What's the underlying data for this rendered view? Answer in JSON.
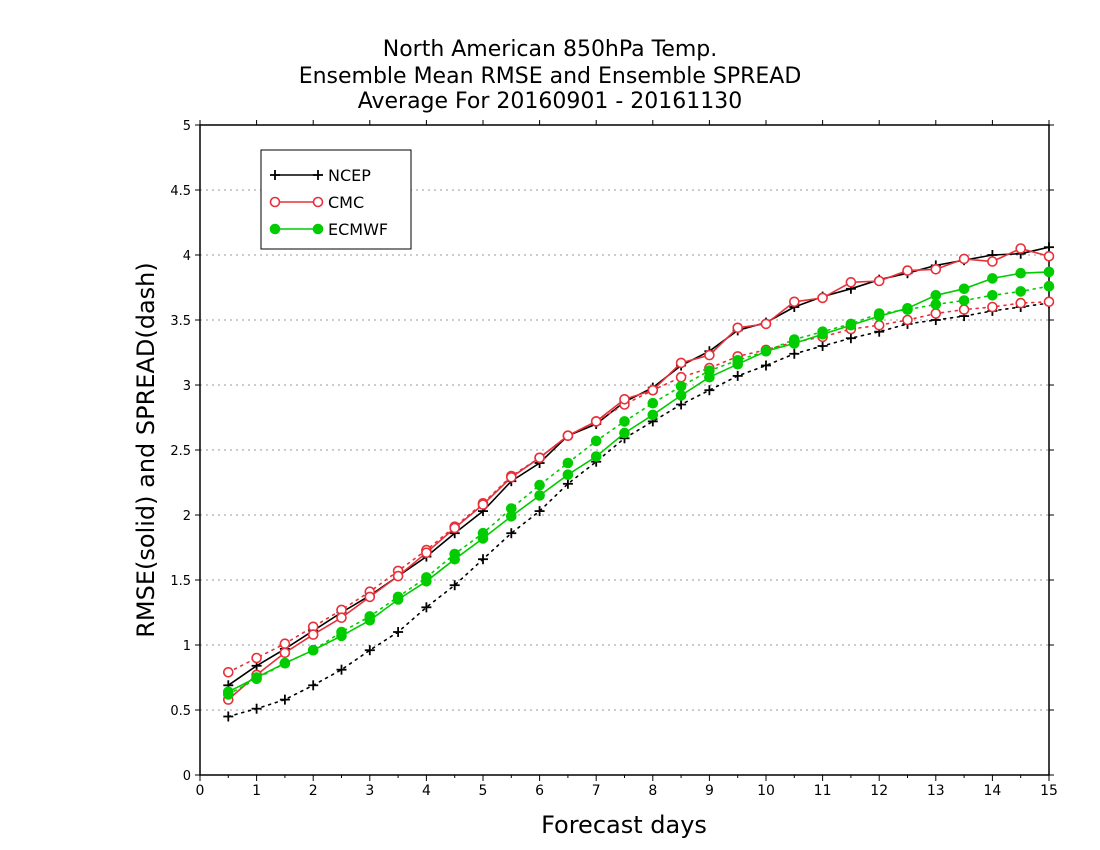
{
  "chart_data": {
    "type": "line",
    "title": [
      "North American 850hPa Temp.",
      "Ensemble Mean RMSE and Ensemble SPREAD",
      "Average For 20160901 - 20161130"
    ],
    "xlabel": "Forecast days",
    "ylabel": "RMSE(solid) and SPREAD(dash)",
    "xlim": [
      0,
      15
    ],
    "ylim": [
      0,
      5
    ],
    "xticks": [
      "0",
      "1",
      "2",
      "3",
      "4",
      "5",
      "6",
      "7",
      "8",
      "9",
      "10",
      "11",
      "12",
      "13",
      "14",
      "15"
    ],
    "yticks": [
      "0",
      "0.5",
      "1",
      "1.5",
      "2",
      "2.5",
      "3",
      "3.5",
      "4",
      "4.5",
      "5"
    ],
    "grid": true,
    "legend_position": "top-left",
    "x": [
      0.5,
      1,
      1.5,
      2,
      2.5,
      3,
      3.5,
      4,
      4.5,
      5,
      5.5,
      6,
      6.5,
      7,
      7.5,
      8,
      8.5,
      9,
      9.5,
      10,
      10.5,
      11,
      11.5,
      12,
      12.5,
      13,
      13.5,
      14,
      14.5,
      15
    ],
    "series": [
      {
        "name": "NCEP",
        "color": "#000000",
        "marker": "plus",
        "rmse": [
          0.69,
          0.84,
          0.97,
          1.11,
          1.25,
          1.38,
          1.53,
          1.68,
          1.86,
          2.03,
          2.26,
          2.4,
          2.61,
          2.7,
          2.87,
          2.98,
          3.15,
          3.26,
          3.42,
          3.48,
          3.6,
          3.68,
          3.74,
          3.81,
          3.86,
          3.92,
          3.96,
          4.0,
          4.01,
          4.06
        ],
        "spread": [
          0.45,
          0.51,
          0.58,
          0.69,
          0.81,
          0.96,
          1.1,
          1.29,
          1.46,
          1.66,
          1.86,
          2.03,
          2.24,
          2.41,
          2.59,
          2.72,
          2.85,
          2.96,
          3.07,
          3.15,
          3.24,
          3.3,
          3.36,
          3.41,
          3.47,
          3.5,
          3.53,
          3.57,
          3.6,
          3.63
        ]
      },
      {
        "name": "CMC",
        "color": "#e8303a",
        "marker": "circle",
        "rmse": [
          0.58,
          0.77,
          0.94,
          1.08,
          1.21,
          1.37,
          1.53,
          1.71,
          1.9,
          2.08,
          2.29,
          2.44,
          2.61,
          2.72,
          2.89,
          2.96,
          3.17,
          3.23,
          3.44,
          3.47,
          3.64,
          3.67,
          3.79,
          3.8,
          3.88,
          3.89,
          3.97,
          3.95,
          4.05,
          3.99
        ],
        "spread": [
          0.79,
          0.9,
          1.01,
          1.14,
          1.27,
          1.41,
          1.57,
          1.73,
          1.91,
          2.09,
          2.3,
          2.44,
          2.61,
          2.72,
          2.85,
          2.96,
          3.06,
          3.13,
          3.22,
          3.27,
          3.33,
          3.37,
          3.43,
          3.46,
          3.5,
          3.55,
          3.58,
          3.6,
          3.63,
          3.64
        ]
      },
      {
        "name": "ECMWF",
        "color": "#00cc00",
        "marker": "dot",
        "rmse": [
          0.64,
          0.75,
          0.86,
          0.96,
          1.07,
          1.19,
          1.35,
          1.49,
          1.66,
          1.82,
          1.99,
          2.15,
          2.31,
          2.45,
          2.63,
          2.77,
          2.92,
          3.06,
          3.16,
          3.26,
          3.32,
          3.39,
          3.46,
          3.53,
          3.59,
          3.69,
          3.74,
          3.82,
          3.86,
          3.87
        ],
        "spread": [
          0.62,
          0.74,
          0.86,
          0.96,
          1.1,
          1.22,
          1.37,
          1.52,
          1.7,
          1.86,
          2.05,
          2.23,
          2.4,
          2.57,
          2.72,
          2.86,
          2.99,
          3.11,
          3.19,
          3.26,
          3.35,
          3.41,
          3.47,
          3.55,
          3.58,
          3.62,
          3.65,
          3.69,
          3.72,
          3.76
        ]
      }
    ]
  }
}
